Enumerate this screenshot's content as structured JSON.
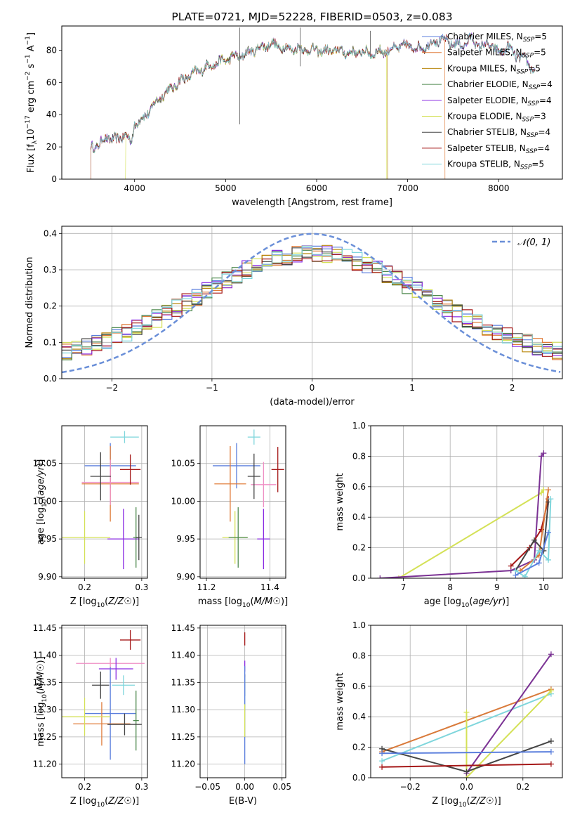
{
  "colors": {
    "chabrier_miles": "#5b7fdd",
    "salpeter_miles": "#e07b39",
    "kroupa_miles": "#b8860b",
    "chabrier_elodie": "#4f8a4f",
    "salpeter_elodie": "#8a2be2",
    "kroupa_elodie": "#d4e157",
    "chabrier_stelib": "#444444",
    "salpeter_stelib": "#a51818",
    "kroupa_stelib": "#7fd6dc",
    "normal_curve": "#6a8fd8",
    "salpeter_elodie_line": "#7b3294",
    "salpeter_miles_line": "#d97a3a",
    "pink": "#ef8fc4"
  },
  "chart_data": [
    {
      "id": "spectrum",
      "type": "line",
      "title": "PLATE=0721, MJD=52228, FIBERID=0503, z=0.083",
      "xlabel": "wavelength [Angstrom, rest frame]",
      "ylabel": "Flux [f_λ 10^-17 erg cm^-2 s^-1 A^-1]",
      "xlim": [
        3200,
        8700
      ],
      "ylim": [
        0,
        95
      ],
      "xticks": [
        4000,
        5000,
        6000,
        7000,
        8000
      ],
      "yticks": [
        0,
        20,
        40,
        60,
        80
      ],
      "legend_position": "right",
      "legend": [
        {
          "label": "Chabrier MILES, N",
          "sub": "SSP",
          "suffix": "=5",
          "color": "chabrier_miles"
        },
        {
          "label": "Salpeter MILES, N",
          "sub": "SSP",
          "suffix": "=5",
          "color": "salpeter_miles"
        },
        {
          "label": "Kroupa MILES, N",
          "sub": "SSP",
          "suffix": "=5",
          "color": "kroupa_miles"
        },
        {
          "label": "Chabrier ELODIE, N",
          "sub": "SSP",
          "suffix": "=4",
          "color": "chabrier_elodie"
        },
        {
          "label": "Salpeter ELODIE, N",
          "sub": "SSP",
          "suffix": "=4",
          "color": "salpeter_elodie"
        },
        {
          "label": "Kroupa ELODIE, N",
          "sub": "SSP",
          "suffix": "=3",
          "color": "kroupa_elodie"
        },
        {
          "label": "Chabrier STELIB, N",
          "sub": "SSP",
          "suffix": "=4",
          "color": "chabrier_stelib"
        },
        {
          "label": "Salpeter STELIB, N",
          "sub": "SSP",
          "suffix": "=4",
          "color": "salpeter_stelib"
        },
        {
          "label": "Kroupa STELIB, N",
          "sub": "SSP",
          "suffix": "=5",
          "color": "kroupa_stelib"
        }
      ],
      "continuum": [
        [
          3520,
          20
        ],
        [
          3600,
          21
        ],
        [
          3700,
          26
        ],
        [
          3800,
          24
        ],
        [
          3900,
          28
        ],
        [
          3960,
          22
        ],
        [
          4000,
          34
        ],
        [
          4100,
          38
        ],
        [
          4200,
          45
        ],
        [
          4300,
          52
        ],
        [
          4400,
          56
        ],
        [
          4500,
          61
        ],
        [
          4600,
          64
        ],
        [
          4700,
          67
        ],
        [
          4800,
          70
        ],
        [
          4900,
          72
        ],
        [
          5000,
          74
        ],
        [
          5100,
          76
        ],
        [
          5200,
          77
        ],
        [
          5300,
          80
        ],
        [
          5400,
          82
        ],
        [
          5500,
          84
        ],
        [
          5600,
          82
        ],
        [
          5700,
          81
        ],
        [
          5800,
          81
        ],
        [
          5900,
          80
        ],
        [
          6000,
          80
        ],
        [
          6100,
          79
        ],
        [
          6200,
          80
        ],
        [
          6300,
          79
        ],
        [
          6400,
          78
        ],
        [
          6500,
          79
        ],
        [
          6600,
          78
        ],
        [
          6700,
          79
        ],
        [
          6800,
          80
        ],
        [
          6900,
          82
        ],
        [
          7000,
          83
        ],
        [
          7100,
          81
        ],
        [
          7200,
          82
        ],
        [
          7300,
          86
        ],
        [
          7400,
          86
        ],
        [
          7500,
          84
        ],
        [
          7600,
          83
        ],
        [
          7700,
          87
        ],
        [
          7800,
          82
        ],
        [
          7900,
          84
        ],
        [
          8000,
          78
        ],
        [
          8100,
          82
        ],
        [
          8200,
          76
        ],
        [
          8300,
          74
        ],
        [
          8350,
          70
        ],
        [
          8400,
          66
        ]
      ]
    },
    {
      "id": "residuals",
      "type": "histogram",
      "xlabel": "(data-model)/error",
      "ylabel": "Normed distribution",
      "xlim": [
        -2.5,
        2.5
      ],
      "ylim": [
        0,
        0.42
      ],
      "xticks": [
        -2,
        -1,
        0,
        1,
        2
      ],
      "yticks": [
        0.0,
        0.1,
        0.2,
        0.3,
        0.4
      ],
      "legend_position": "top-right",
      "legend_label": "𝒩(0, 1)",
      "bin_width": 0.1
    },
    {
      "id": "age_vs_Z",
      "type": "scatter",
      "xlabel": "Z [log10(Z/Z☉)]",
      "ylabel": "age [log10(age/yr)]",
      "xlim": [
        0.16,
        0.31
      ],
      "ylim": [
        9.898,
        10.1
      ],
      "xticks": [
        0.2,
        0.3
      ],
      "yticks": [
        9.9,
        9.95,
        10.0,
        10.05
      ],
      "points": [
        {
          "x": 0.245,
          "y": 10.047,
          "xerr": 0.045,
          "yerr": 0.03,
          "color": "chabrier_miles"
        },
        {
          "x": 0.245,
          "y": 10.023,
          "xerr": 0.05,
          "yerr": 0.05,
          "color": "salpeter_miles"
        },
        {
          "x": 0.245,
          "y": 10.025,
          "xerr": 0.05,
          "yerr": 0.03,
          "color": "pink"
        },
        {
          "x": 0.228,
          "y": 10.033,
          "xerr": 0.018,
          "yerr": 0.032,
          "color": "chabrier_stelib"
        },
        {
          "x": 0.28,
          "y": 10.042,
          "xerr": 0.018,
          "yerr": 0.02,
          "color": "salpeter_stelib"
        },
        {
          "x": 0.27,
          "y": 10.085,
          "xerr": 0.025,
          "yerr": 0.008,
          "color": "kroupa_stelib"
        },
        {
          "x": 0.2,
          "y": 9.952,
          "xerr": 0.045,
          "yerr": 0.035,
          "color": "kroupa_elodie"
        },
        {
          "x": 0.268,
          "y": 9.95,
          "xerr": 0.028,
          "yerr": 0.04,
          "color": "salpeter_elodie"
        },
        {
          "x": 0.29,
          "y": 9.952,
          "xerr": 0.005,
          "yerr": 0.04,
          "color": "chabrier_elodie"
        },
        {
          "x": 0.295,
          "y": 9.952,
          "xerr": 0.005,
          "yerr": 0.03,
          "color": "chabrier_stelib"
        }
      ]
    },
    {
      "id": "age_vs_mass",
      "type": "scatter",
      "xlabel": "mass [log10(M/M☉)]",
      "ylabel": "",
      "xlim": [
        11.18,
        11.45
      ],
      "ylim": [
        9.898,
        10.1
      ],
      "xticks": [
        11.2,
        11.4
      ],
      "yticks": [
        9.9,
        9.95,
        10.0,
        10.05
      ],
      "points": [
        {
          "x": 11.295,
          "y": 10.047,
          "xerr": 0.075,
          "yerr": 0.03,
          "color": "chabrier_miles"
        },
        {
          "x": 11.275,
          "y": 10.023,
          "xerr": 0.05,
          "yerr": 0.05,
          "color": "salpeter_miles"
        },
        {
          "x": 11.38,
          "y": 10.022,
          "xerr": 0.04,
          "yerr": 0.03,
          "color": "pink"
        },
        {
          "x": 11.35,
          "y": 10.033,
          "xerr": 0.02,
          "yerr": 0.03,
          "color": "chabrier_stelib"
        },
        {
          "x": 11.425,
          "y": 10.042,
          "xerr": 0.02,
          "yerr": 0.03,
          "color": "salpeter_stelib"
        },
        {
          "x": 11.35,
          "y": 10.085,
          "xerr": 0.02,
          "yerr": 0.01,
          "color": "kroupa_stelib"
        },
        {
          "x": 11.29,
          "y": 9.952,
          "xerr": 0.04,
          "yerr": 0.035,
          "color": "kroupa_elodie"
        },
        {
          "x": 11.38,
          "y": 9.95,
          "xerr": 0.02,
          "yerr": 0.04,
          "color": "salpeter_elodie"
        },
        {
          "x": 11.3,
          "y": 9.952,
          "xerr": 0.03,
          "yerr": 0.04,
          "color": "chabrier_elodie"
        }
      ]
    },
    {
      "id": "weight_vs_age",
      "type": "line",
      "xlabel": "age [log10(age/yr)]",
      "ylabel": "mass weight",
      "xlim": [
        6.3,
        10.4
      ],
      "ylim": [
        0,
        1.0
      ],
      "xticks": [
        7,
        8,
        9,
        10
      ],
      "yticks": [
        0.0,
        0.2,
        0.4,
        0.6,
        0.8,
        1.0
      ],
      "series": [
        {
          "color": "kroupa_elodie",
          "x": [
            6.9,
            9.95,
            10.0
          ],
          "y": [
            0.0,
            0.56,
            0.58
          ]
        },
        {
          "color": "salpeter_elodie_line",
          "x": [
            6.5,
            9.3,
            9.8,
            9.95,
            10.0
          ],
          "y": [
            0.0,
            0.05,
            0.12,
            0.8,
            0.82
          ]
        },
        {
          "color": "salpeter_stelib",
          "x": [
            9.3,
            9.7,
            9.95,
            10.1
          ],
          "y": [
            0.08,
            0.2,
            0.32,
            0.52
          ]
        },
        {
          "color": "salpeter_miles_line",
          "x": [
            9.5,
            9.9,
            10.1
          ],
          "y": [
            0.05,
            0.15,
            0.58
          ]
        },
        {
          "color": "chabrier_stelib",
          "x": [
            9.4,
            9.8,
            10.0,
            10.1
          ],
          "y": [
            0.05,
            0.25,
            0.18,
            0.5
          ]
        },
        {
          "color": "kroupa_stelib",
          "x": [
            9.4,
            9.6,
            9.9,
            10.1,
            10.15
          ],
          "y": [
            0.05,
            0.01,
            0.18,
            0.12,
            0.52
          ]
        },
        {
          "color": "chabrier_miles",
          "x": [
            9.4,
            9.9,
            10.1
          ],
          "y": [
            0.02,
            0.1,
            0.3
          ]
        }
      ]
    },
    {
      "id": "mass_vs_Z",
      "type": "scatter",
      "xlabel": "Z [log10(Z/Z☉)]",
      "ylabel": "mass [log10(M/M☉)]",
      "xlim": [
        0.16,
        0.31
      ],
      "ylim": [
        11.175,
        11.455
      ],
      "xticks": [
        0.2,
        0.3
      ],
      "yticks": [
        11.2,
        11.25,
        11.3,
        11.35,
        11.4,
        11.45
      ],
      "points": [
        {
          "x": 0.28,
          "y": 11.428,
          "xerr": 0.018,
          "yerr": 0.018,
          "color": "salpeter_stelib"
        },
        {
          "x": 0.245,
          "y": 11.385,
          "xerr": 0.06,
          "yerr": 0.01,
          "color": "pink"
        },
        {
          "x": 0.255,
          "y": 11.375,
          "xerr": 0.03,
          "yerr": 0.02,
          "color": "salpeter_elodie"
        },
        {
          "x": 0.228,
          "y": 11.345,
          "xerr": 0.015,
          "yerr": 0.025,
          "color": "chabrier_stelib"
        },
        {
          "x": 0.268,
          "y": 11.345,
          "xerr": 0.02,
          "yerr": 0.018,
          "color": "kroupa_stelib"
        },
        {
          "x": 0.245,
          "y": 11.293,
          "xerr": 0.045,
          "yerr": 0.085,
          "color": "chabrier_miles"
        },
        {
          "x": 0.23,
          "y": 11.274,
          "xerr": 0.05,
          "yerr": 0.04,
          "color": "salpeter_miles"
        },
        {
          "x": 0.2,
          "y": 11.287,
          "xerr": 0.045,
          "yerr": 0.035,
          "color": "kroupa_elodie"
        },
        {
          "x": 0.29,
          "y": 11.28,
          "xerr": 0.005,
          "yerr": 0.055,
          "color": "chabrier_elodie"
        },
        {
          "x": 0.27,
          "y": 11.273,
          "xerr": 0.03,
          "yerr": 0.02,
          "color": "chabrier_stelib"
        }
      ]
    },
    {
      "id": "mass_vs_EBV",
      "type": "scatter",
      "xlabel": "E(B-V)",
      "ylabel": "",
      "xlim": [
        -0.06,
        0.055
      ],
      "ylim": [
        11.175,
        11.455
      ],
      "xticks": [
        -0.05,
        0.0,
        0.05
      ],
      "yticks": [
        11.2,
        11.25,
        11.3,
        11.35,
        11.4,
        11.45
      ],
      "points": [
        {
          "x": 0.0,
          "y": 11.43,
          "xerr": 0.0,
          "yerr": 0.012,
          "color": "salpeter_stelib"
        },
        {
          "x": 0.0,
          "y": 11.38,
          "xerr": 0.0,
          "yerr": 0.01,
          "color": "salpeter_elodie"
        },
        {
          "x": 0.0,
          "y": 11.345,
          "xerr": 0.0,
          "yerr": 0.02,
          "color": "chabrier_stelib"
        },
        {
          "x": 0.0,
          "y": 11.33,
          "xerr": 0.0,
          "yerr": 0.03,
          "color": "kroupa_stelib"
        },
        {
          "x": 0.0,
          "y": 11.29,
          "xerr": 0.0,
          "yerr": 0.09,
          "color": "chabrier_miles"
        },
        {
          "x": 0.0,
          "y": 11.28,
          "xerr": 0.0,
          "yerr": 0.03,
          "color": "kroupa_elodie"
        }
      ]
    },
    {
      "id": "weight_vs_Z",
      "type": "line",
      "xlabel": "Z [log10(Z/Z☉)]",
      "ylabel": "mass weight",
      "xlim": [
        -0.34,
        0.34
      ],
      "ylim": [
        0,
        1.0
      ],
      "xticks": [
        -0.2,
        0.0,
        0.2
      ],
      "yticks": [
        0.0,
        0.2,
        0.4,
        0.6,
        0.8,
        1.0
      ],
      "series": [
        {
          "color": "salpeter_miles_line",
          "x": [
            -0.3,
            0.3
          ],
          "y": [
            0.17,
            0.58
          ]
        },
        {
          "color": "kroupa_stelib",
          "x": [
            -0.3,
            0.3
          ],
          "y": [
            0.11,
            0.55
          ]
        },
        {
          "color": "kroupa_elodie",
          "x": [
            0.0,
            0.0,
            0.3
          ],
          "y": [
            0.43,
            0.0,
            0.57
          ]
        },
        {
          "color": "salpeter_elodie_line",
          "x": [
            0.0,
            0.3
          ],
          "y": [
            0.03,
            0.81
          ]
        },
        {
          "color": "chabrier_stelib",
          "x": [
            -0.3,
            0.0,
            0.3
          ],
          "y": [
            0.19,
            0.04,
            0.24
          ]
        },
        {
          "color": "chabrier_miles",
          "x": [
            -0.3,
            0.3
          ],
          "y": [
            0.16,
            0.17
          ]
        },
        {
          "color": "salpeter_stelib",
          "x": [
            -0.3,
            0.3
          ],
          "y": [
            0.07,
            0.09
          ]
        }
      ]
    }
  ]
}
